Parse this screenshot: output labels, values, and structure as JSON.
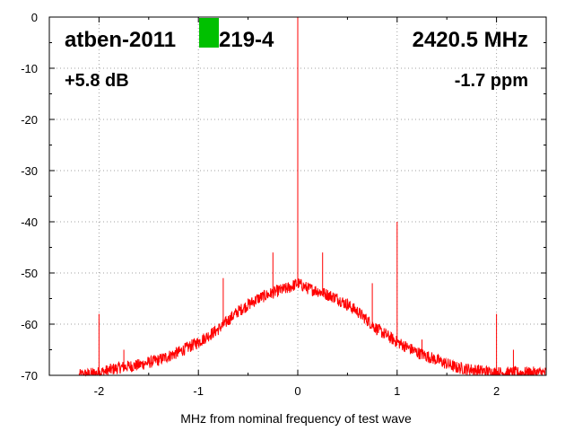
{
  "chart_data": {
    "type": "line",
    "xlabel": "MHz from nominal frequency of test wave",
    "ylabel": "",
    "xlim": [
      -2.5,
      2.5
    ],
    "ylim": [
      -70,
      0
    ],
    "xticks": [
      -2,
      -1,
      0,
      1,
      2
    ],
    "yticks": [
      0,
      -10,
      -20,
      -30,
      -40,
      -50,
      -60,
      -70
    ],
    "grid": true,
    "color": "#ff0000",
    "marker_color": "#00c000",
    "annotations": {
      "device": "atben-2011",
      "device_suffix": "219-4",
      "frequency": "2420.5 MHz",
      "gain": "+5.8 dB",
      "offset": "-1.7 ppm"
    },
    "series": [
      {
        "x": [
          -2.2,
          -2.0,
          -1.8,
          -1.6,
          -1.4,
          -1.2,
          -1.0,
          -0.8,
          -0.6,
          -0.4,
          -0.2,
          -0.1,
          0.0,
          0.1,
          0.2,
          0.4,
          0.6,
          0.8,
          1.0,
          1.2,
          1.4,
          1.6,
          1.8,
          2.0,
          2.2,
          2.5
        ],
        "values": [
          -70,
          -69.5,
          -68.5,
          -68,
          -67,
          -65.5,
          -63.5,
          -61,
          -57.5,
          -55,
          -53.5,
          -53,
          -52,
          -53,
          -53.5,
          -55,
          -57.5,
          -61,
          -63.5,
          -65.5,
          -67,
          -68.5,
          -69,
          -69.5,
          -69.5,
          -69.5
        ]
      }
    ],
    "spurs": [
      {
        "x": -2.0,
        "y": -58
      },
      {
        "x": -1.75,
        "y": -65
      },
      {
        "x": -1.0,
        "y": -63
      },
      {
        "x": -0.75,
        "y": -51
      },
      {
        "x": -0.5,
        "y": -55
      },
      {
        "x": -0.25,
        "y": -46
      },
      {
        "x": 0.0,
        "y": 0
      },
      {
        "x": 0.25,
        "y": -46
      },
      {
        "x": 0.5,
        "y": -55
      },
      {
        "x": 0.75,
        "y": -52
      },
      {
        "x": 1.0,
        "y": -40
      },
      {
        "x": 1.25,
        "y": -63
      },
      {
        "x": 2.0,
        "y": -58
      },
      {
        "x": 2.17,
        "y": -65
      }
    ]
  }
}
